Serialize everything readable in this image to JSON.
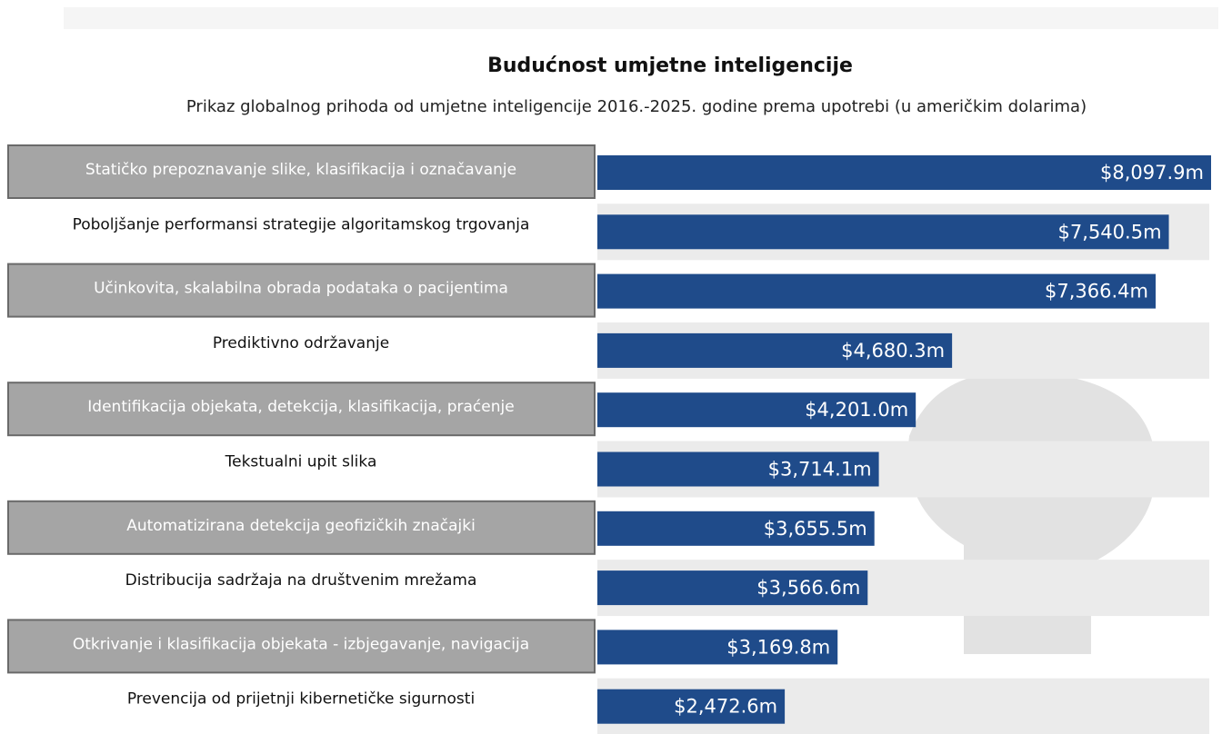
{
  "chart_data": {
    "type": "bar",
    "orientation": "horizontal",
    "title": "Budućnost umjetne inteligencije",
    "subtitle": "Prikaz globalnog prihoda od umjetne inteligencije 2016.-2025. godine prema upotrebi (u američkim  dolarima)",
    "categories": [
      "Statičko prepoznavanje slike, klasifikacija i označavanje",
      "Poboljšanje performansi strategije algoritamskog trgovanja",
      "Učinkovita, skalabilna obrada podataka o pacijentima",
      "Prediktivno održavanje",
      "Identifikacija objekata, detekcija, klasifikacija, praćenje",
      "Tekstualni upit slika",
      "Automatizirana detekcija geofizičkih značajki",
      "Distribucija sadržaja na društvenim mrežama",
      "Otkrivanje i klasifikacija objekata - izbjegavanje, navigacija",
      "Prevencija od prijetnji kibernetičke sigurnosti"
    ],
    "values": [
      8097.9,
      7540.5,
      7366.4,
      4680.3,
      4201.0,
      3714.1,
      3655.5,
      3566.6,
      3169.8,
      2472.6
    ],
    "value_labels": [
      "$8,097.9m",
      "$7,540.5m",
      "$7,366.4m",
      "$4,680.3m",
      "$4,201.0m",
      "$3,714.1m",
      "$3,655.5m",
      "$3,566.6m",
      "$3,169.8m",
      "$2,472.6m"
    ],
    "color": "#1f4b8a"
  }
}
